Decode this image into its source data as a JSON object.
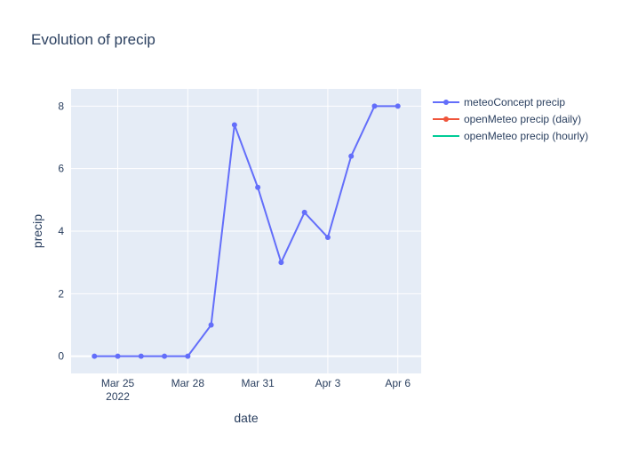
{
  "chart_data": {
    "type": "line",
    "title": "Evolution of precip",
    "xlabel": "date",
    "ylabel": "precip",
    "x_ticks": [
      {
        "date": "2022-03-25",
        "label": "Mar 25",
        "sublabel": "2022"
      },
      {
        "date": "2022-03-28",
        "label": "Mar 28",
        "sublabel": ""
      },
      {
        "date": "2022-03-31",
        "label": "Mar 31",
        "sublabel": ""
      },
      {
        "date": "2022-04-03",
        "label": "Apr 3",
        "sublabel": ""
      },
      {
        "date": "2022-04-06",
        "label": "Apr 6",
        "sublabel": ""
      }
    ],
    "y_ticks": [
      0,
      2,
      4,
      6,
      8
    ],
    "xlim": [
      "2022-03-23",
      "2022-04-07"
    ],
    "ylim": [
      -0.55,
      8.55
    ],
    "grid": true,
    "legend_position": "top-right",
    "series": [
      {
        "name": "meteoConcept precip",
        "color": "#636efa",
        "mode": "lines+markers",
        "x": [
          "2022-03-24",
          "2022-03-25",
          "2022-03-26",
          "2022-03-27",
          "2022-03-28",
          "2022-03-29",
          "2022-03-30",
          "2022-03-31",
          "2022-04-01",
          "2022-04-02",
          "2022-04-03",
          "2022-04-04",
          "2022-04-05",
          "2022-04-06"
        ],
        "y": [
          0,
          0,
          0,
          0,
          0,
          1,
          7.4,
          5.4,
          3,
          4.6,
          3.8,
          6.4,
          8,
          8
        ]
      },
      {
        "name": "openMeteo precip (daily)",
        "color": "#ef553b",
        "mode": "lines+markers",
        "x": [],
        "y": []
      },
      {
        "name": "openMeteo precip (hourly)",
        "color": "#00cc96",
        "mode": "lines",
        "x": [],
        "y": []
      }
    ]
  }
}
